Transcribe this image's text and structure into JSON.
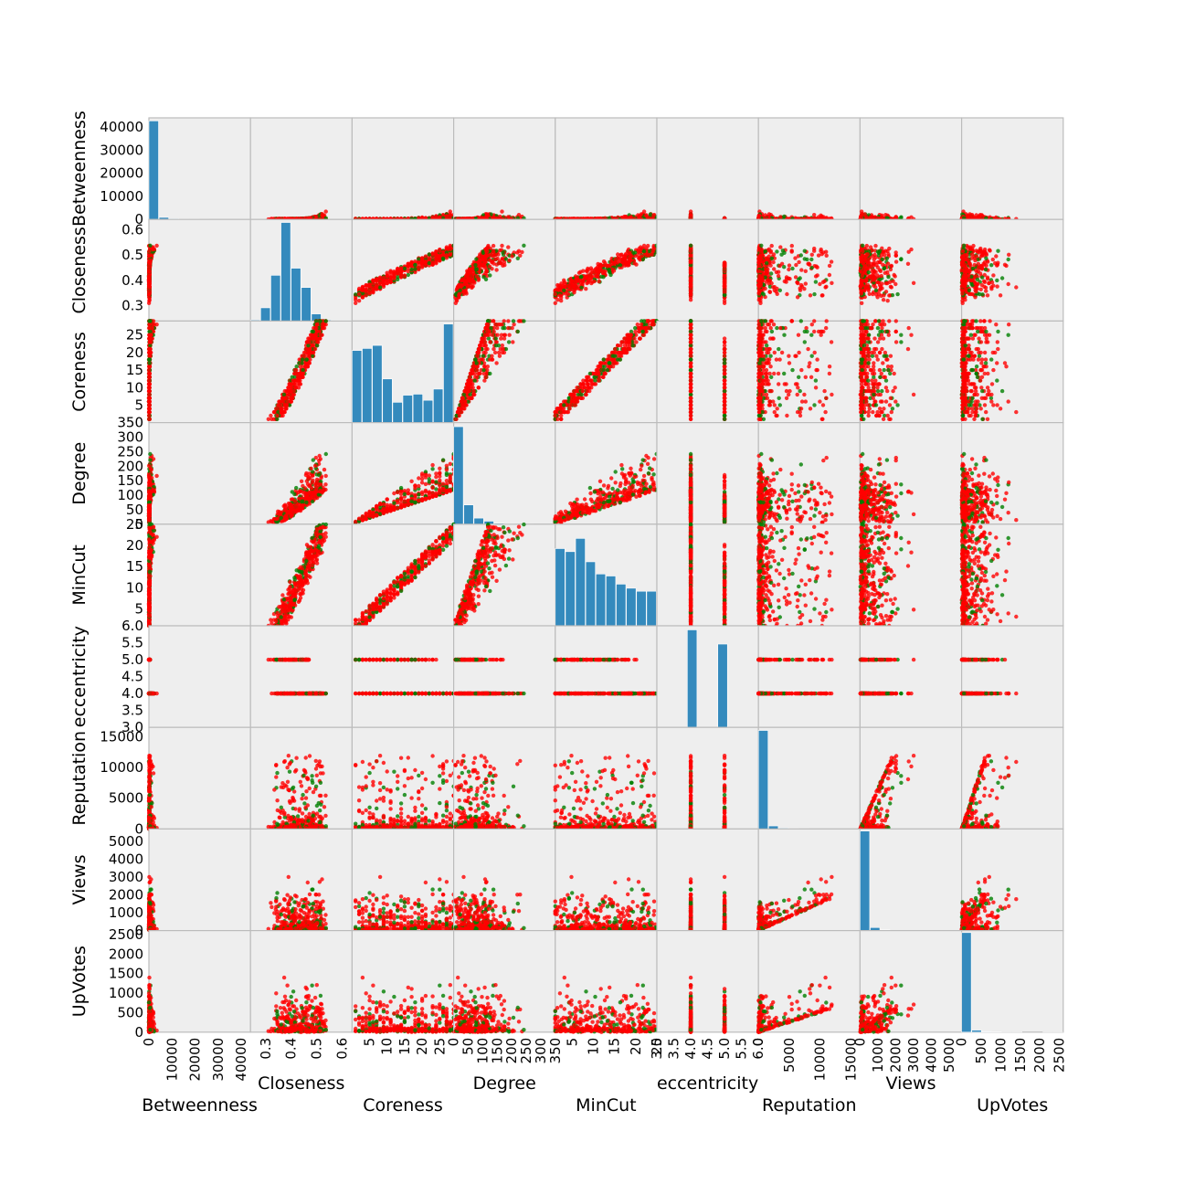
{
  "chart_data": {
    "type": "scatter_matrix",
    "title": "",
    "grid": true,
    "legend": "none",
    "colors": {
      "panel_bg": "#eeeeee",
      "histogram": "#348abd",
      "class_a": "#ff0000",
      "class_b": "#008000",
      "frame": "#bcbcbc"
    },
    "variables": [
      {
        "name": "Betweenness",
        "range": [
          0,
          44000
        ],
        "ticks": [
          0,
          10000,
          20000,
          30000,
          40000
        ],
        "tick_labels": [
          "0",
          "10000",
          "20000",
          "30000",
          "40000"
        ],
        "hist": [
          0.97,
          0.02,
          0.008,
          0.002,
          0.002,
          0.001,
          0,
          0,
          0,
          0.001
        ]
      },
      {
        "name": "Closeness",
        "range": [
          0.24,
          0.64
        ],
        "ticks": [
          0.3,
          0.4,
          0.5,
          0.6
        ],
        "tick_labels": [
          "0.3",
          "0.4",
          "0.5",
          "0.6"
        ],
        "hist": [
          0.01,
          0.13,
          0.45,
          0.97,
          0.52,
          0.33,
          0.07,
          0.01,
          0.005,
          0.005
        ]
      },
      {
        "name": "Coreness",
        "range": [
          0,
          29
        ],
        "ticks": [
          5,
          10,
          15,
          20,
          25
        ],
        "tick_labels": [
          "5",
          "10",
          "15",
          "20",
          "25"
        ],
        "hist": [
          0.71,
          0.73,
          0.76,
          0.43,
          0.2,
          0.27,
          0.28,
          0.22,
          0.33,
          0.97
        ]
      },
      {
        "name": "Degree",
        "range": [
          0,
          350
        ],
        "ticks": [
          0,
          50,
          100,
          150,
          200,
          250,
          300,
          350
        ],
        "tick_labels": [
          "0",
          "50",
          "100",
          "150",
          "200",
          "250",
          "300",
          "350"
        ],
        "hist": [
          0.96,
          0.19,
          0.06,
          0.03,
          0.01,
          0.005,
          0.003,
          0.001,
          0,
          0
        ]
      },
      {
        "name": "MinCut",
        "range": [
          1,
          25
        ],
        "ticks": [
          5,
          10,
          15,
          20,
          25
        ],
        "tick_labels": [
          "5",
          "10",
          "15",
          "20",
          "25"
        ],
        "hist": [
          0.76,
          0.73,
          0.86,
          0.63,
          0.51,
          0.49,
          0.41,
          0.37,
          0.34,
          0.34
        ]
      },
      {
        "name": "eccentricity",
        "range": [
          3.0,
          6.0
        ],
        "ticks": [
          3.0,
          3.5,
          4.0,
          4.5,
          5.0,
          5.5,
          6.0
        ],
        "tick_labels": [
          "3.0",
          "3.5",
          "4.0",
          "4.5",
          "5.0",
          "5.5",
          "6.0"
        ],
        "discrete": [
          4,
          5
        ],
        "hist": [
          0,
          0,
          0,
          0.96,
          0,
          0,
          0.82,
          0,
          0,
          0
        ]
      },
      {
        "name": "Reputation",
        "range": [
          0,
          16500
        ],
        "ticks": [
          0,
          5000,
          10000,
          15000
        ],
        "tick_labels": [
          "0",
          "5000",
          "10000",
          "15000"
        ],
        "hist": [
          0.97,
          0.03,
          0.008,
          0.003,
          0.002,
          0.001,
          0.001,
          0,
          0,
          0.001
        ]
      },
      {
        "name": "Views",
        "range": [
          0,
          5700
        ],
        "ticks": [
          0,
          1000,
          2000,
          3000,
          4000,
          5000
        ],
        "tick_labels": [
          "0",
          "1000",
          "2000",
          "3000",
          "4000",
          "5000"
        ],
        "hist": [
          0.98,
          0.03,
          0.008,
          0.003,
          0.001,
          0.001,
          0,
          0,
          0,
          0.001
        ]
      },
      {
        "name": "UpVotes",
        "range": [
          0,
          2600
        ],
        "ticks": [
          0,
          500,
          1000,
          1500,
          2000,
          2500
        ],
        "tick_labels": [
          "0",
          "500",
          "1000",
          "1500",
          "2000",
          "2500"
        ],
        "hist": [
          0.98,
          0.02,
          0.006,
          0.003,
          0.001,
          0.001,
          0,
          0,
          0.001,
          0.001
        ]
      }
    ]
  }
}
